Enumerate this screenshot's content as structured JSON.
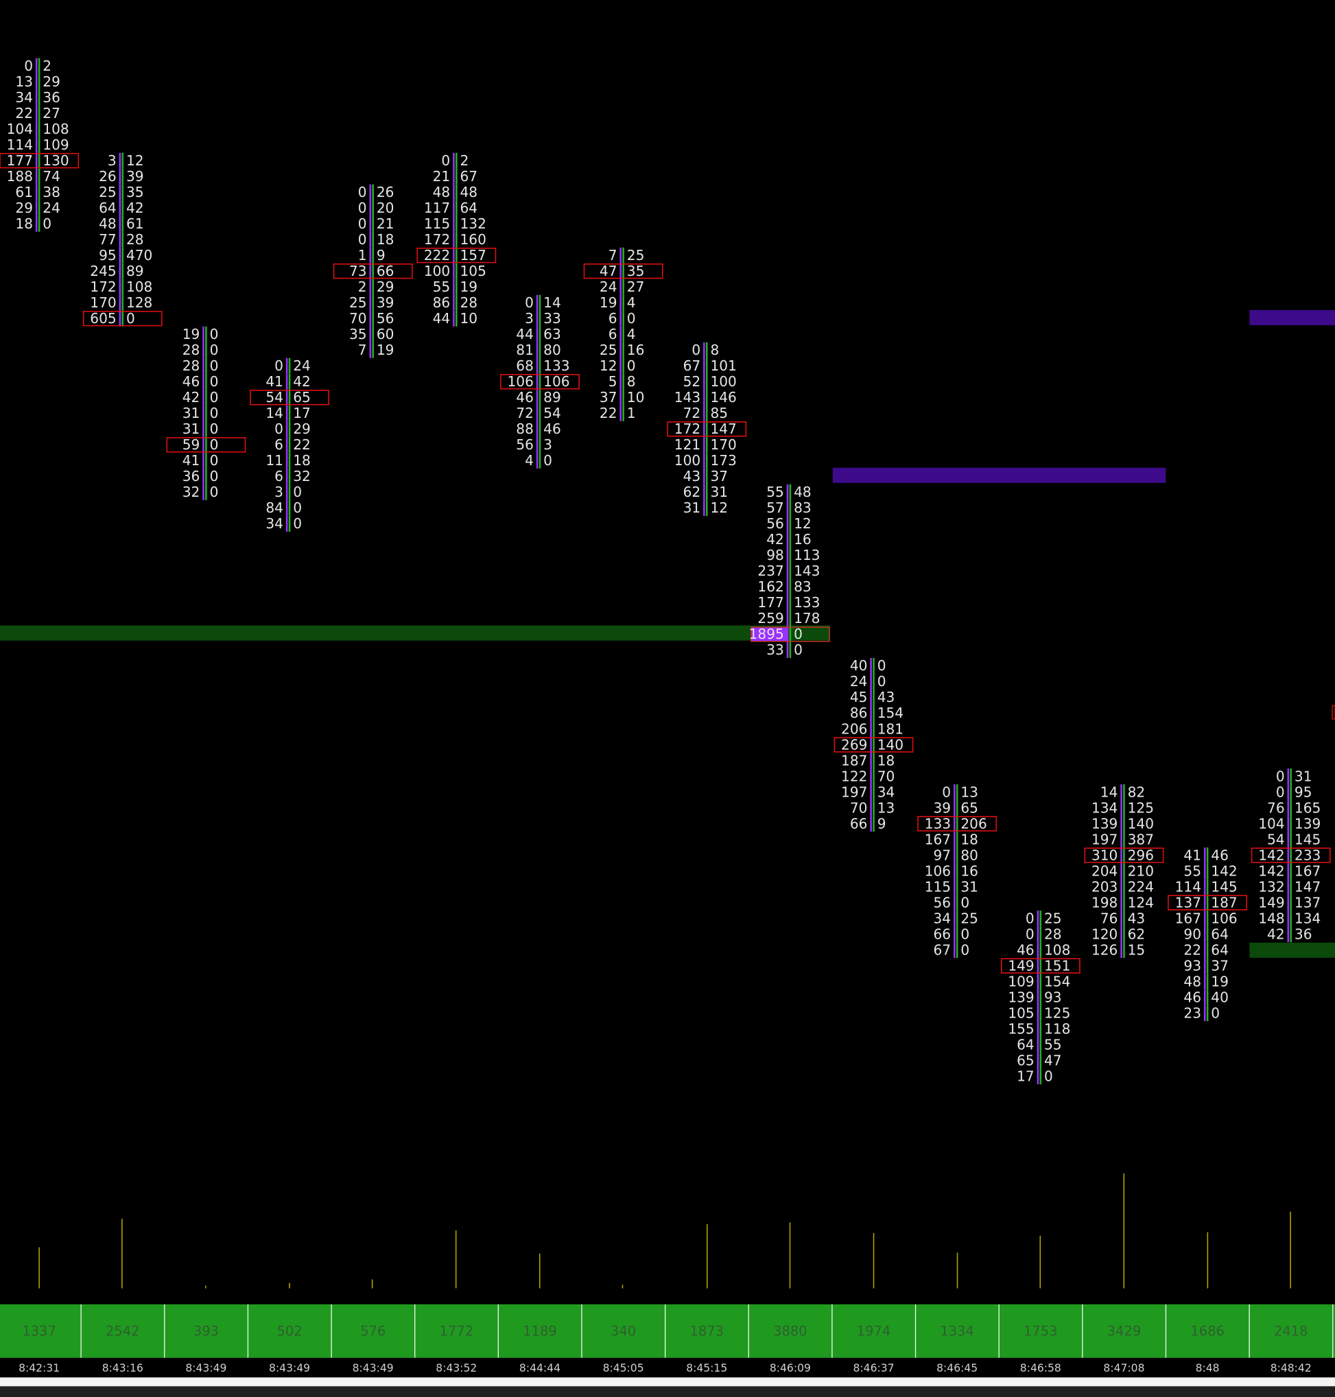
{
  "clusters": [
    {
      "time": "8:42:31",
      "total": 1337,
      "rows": [
        [
          0,
          2
        ],
        [
          13,
          29
        ],
        [
          34,
          36
        ],
        [
          22,
          27
        ],
        [
          104,
          108
        ],
        [
          114,
          109
        ],
        [
          177,
          130
        ],
        [
          188,
          74
        ],
        [
          61,
          38
        ],
        [
          29,
          24
        ],
        [
          18,
          0
        ]
      ]
    },
    {
      "time": "8:43:16",
      "total": 2542,
      "rows": [
        [
          3,
          12
        ],
        [
          26,
          39
        ],
        [
          25,
          35
        ],
        [
          64,
          42
        ],
        [
          48,
          61
        ],
        [
          77,
          28
        ],
        [
          95,
          470
        ],
        [
          245,
          89
        ],
        [
          172,
          108
        ],
        [
          170,
          128
        ],
        [
          605,
          0
        ]
      ]
    },
    {
      "time": "8:43:49",
      "total": 393,
      "rows": [
        [
          19,
          0
        ],
        [
          28,
          0
        ],
        [
          28,
          0
        ],
        [
          46,
          0
        ],
        [
          42,
          0
        ],
        [
          31,
          0
        ],
        [
          31,
          0
        ],
        [
          59,
          0
        ],
        [
          41,
          0
        ],
        [
          36,
          0
        ],
        [
          32,
          0
        ]
      ]
    },
    {
      "time": "8:43:49",
      "total": 502,
      "rows": [
        [
          0,
          24
        ],
        [
          41,
          42
        ],
        [
          54,
          65
        ],
        [
          14,
          17
        ],
        [
          0,
          29
        ],
        [
          6,
          22
        ],
        [
          11,
          18
        ],
        [
          6,
          32
        ],
        [
          3,
          0
        ],
        [
          84,
          0
        ],
        [
          34,
          0
        ]
      ]
    },
    {
      "time": "8:43:49",
      "total": 576,
      "rows": [
        [
          0,
          26
        ],
        [
          0,
          20
        ],
        [
          0,
          21
        ],
        [
          0,
          18
        ],
        [
          1,
          9
        ],
        [
          73,
          66
        ],
        [
          2,
          29
        ],
        [
          25,
          39
        ],
        [
          70,
          56
        ],
        [
          35,
          60
        ],
        [
          7,
          19
        ]
      ]
    },
    {
      "time": "8:43:52",
      "total": 1772,
      "rows": [
        [
          0,
          2
        ],
        [
          21,
          67
        ],
        [
          48,
          48
        ],
        [
          117,
          64
        ],
        [
          115,
          132
        ],
        [
          172,
          160
        ],
        [
          222,
          157
        ],
        [
          100,
          105
        ],
        [
          55,
          19
        ],
        [
          86,
          28
        ],
        [
          44,
          10
        ]
      ]
    },
    {
      "time": "8:44:44",
      "total": 1189,
      "rows": [
        [
          0,
          14
        ],
        [
          3,
          33
        ],
        [
          44,
          63
        ],
        [
          81,
          80
        ],
        [
          68,
          133
        ],
        [
          106,
          106
        ],
        [
          46,
          89
        ],
        [
          72,
          54
        ],
        [
          88,
          46
        ],
        [
          56,
          3
        ],
        [
          4,
          0
        ]
      ]
    },
    {
      "time": "8:45:05",
      "total": 340,
      "rows": [
        [
          7,
          25
        ],
        [
          47,
          35
        ],
        [
          24,
          27
        ],
        [
          19,
          4
        ],
        [
          6,
          0
        ],
        [
          6,
          4
        ],
        [
          25,
          16
        ],
        [
          12,
          0
        ],
        [
          5,
          8
        ],
        [
          37,
          10
        ],
        [
          22,
          1
        ]
      ]
    },
    {
      "time": "8:45:15",
      "total": 1873,
      "rows": [
        [
          0,
          8
        ],
        [
          67,
          101
        ],
        [
          52,
          100
        ],
        [
          143,
          146
        ],
        [
          72,
          85
        ],
        [
          172,
          147
        ],
        [
          121,
          170
        ],
        [
          100,
          173
        ],
        [
          43,
          37
        ],
        [
          62,
          31
        ],
        [
          31,
          12
        ]
      ]
    },
    {
      "time": "8:46:09",
      "total": 3880,
      "rows": [
        [
          55,
          48
        ],
        [
          57,
          83
        ],
        [
          56,
          12
        ],
        [
          42,
          16
        ],
        [
          98,
          113
        ],
        [
          237,
          143
        ],
        [
          162,
          83
        ],
        [
          177,
          133
        ],
        [
          259,
          178
        ],
        [
          1895,
          0
        ],
        [
          33,
          0
        ]
      ]
    },
    {
      "time": "8:46:37",
      "total": 1974,
      "rows": [
        [
          40,
          0
        ],
        [
          24,
          0
        ],
        [
          45,
          43
        ],
        [
          86,
          154
        ],
        [
          206,
          181
        ],
        [
          269,
          140
        ],
        [
          187,
          18
        ],
        [
          122,
          70
        ],
        [
          197,
          34
        ],
        [
          70,
          13
        ],
        [
          66,
          9
        ]
      ]
    },
    {
      "time": "8:46:45",
      "total": 1334,
      "rows": [
        [
          0,
          13
        ],
        [
          39,
          65
        ],
        [
          133,
          206
        ],
        [
          167,
          18
        ],
        [
          97,
          80
        ],
        [
          106,
          16
        ],
        [
          115,
          31
        ],
        [
          56,
          0
        ],
        [
          34,
          25
        ],
        [
          66,
          0
        ],
        [
          67,
          0
        ]
      ]
    },
    {
      "time": "8:46:58",
      "total": 1753,
      "rows": [
        [
          0,
          25
        ],
        [
          0,
          28
        ],
        [
          46,
          108
        ],
        [
          149,
          151
        ],
        [
          109,
          154
        ],
        [
          139,
          93
        ],
        [
          105,
          125
        ],
        [
          155,
          118
        ],
        [
          64,
          55
        ],
        [
          65,
          47
        ],
        [
          17,
          0
        ]
      ]
    },
    {
      "time": "8:47:08",
      "total": 3429,
      "rows": [
        [
          14,
          82
        ],
        [
          134,
          125
        ],
        [
          139,
          140
        ],
        [
          197,
          387
        ],
        [
          310,
          296
        ],
        [
          204,
          210
        ],
        [
          203,
          224
        ],
        [
          198,
          124
        ],
        [
          76,
          43
        ],
        [
          120,
          62
        ],
        [
          126,
          15
        ]
      ]
    },
    {
      "time": "8:48",
      "total": 1686,
      "rows": [
        [
          41,
          46
        ],
        [
          55,
          142
        ],
        [
          114,
          145
        ],
        [
          137,
          187
        ],
        [
          167,
          106
        ],
        [
          90,
          64
        ],
        [
          22,
          64
        ],
        [
          93,
          37
        ],
        [
          48,
          19
        ],
        [
          46,
          40
        ],
        [
          23,
          0
        ]
      ]
    },
    {
      "time": "8:48:42",
      "total": 2418,
      "rows": [
        [
          0,
          31
        ],
        [
          0,
          95
        ],
        [
          76,
          165
        ],
        [
          104,
          139
        ],
        [
          54,
          145
        ],
        [
          142,
          233
        ],
        [
          142,
          167
        ],
        [
          132,
          147
        ],
        [
          149,
          137
        ],
        [
          148,
          134
        ],
        [
          42,
          36
        ]
      ]
    }
  ]
}
